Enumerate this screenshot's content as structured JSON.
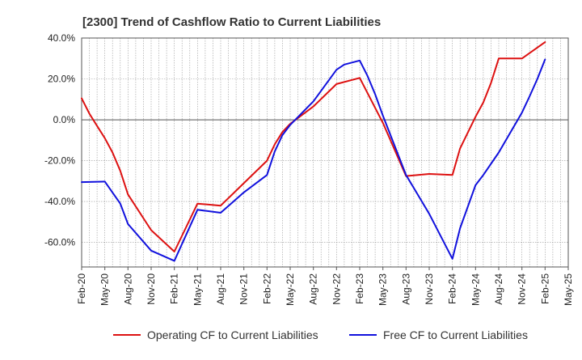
{
  "chart_data": {
    "type": "line",
    "title": "[2300]  Trend of Cashflow Ratio to Current Liabilities",
    "xlabel": "",
    "ylabel": "",
    "x_ticks": [
      "Feb-20",
      "May-20",
      "Aug-20",
      "Nov-20",
      "Feb-21",
      "May-21",
      "Aug-21",
      "Nov-21",
      "Feb-22",
      "May-22",
      "Aug-22",
      "Nov-22",
      "Feb-23",
      "May-23",
      "Aug-23",
      "Nov-23",
      "Feb-24",
      "May-24",
      "Aug-24",
      "Nov-24",
      "Feb-25",
      "May-25"
    ],
    "y_ticks": [
      {
        "value": 40,
        "label": "40.0%"
      },
      {
        "value": 20,
        "label": "20.0%"
      },
      {
        "value": 0,
        "label": "0.0%"
      },
      {
        "value": -20,
        "label": "-20.0%"
      },
      {
        "value": -40,
        "label": "-40.0%"
      },
      {
        "value": -60,
        "label": "-60.0%"
      }
    ],
    "ylim": [
      -72,
      40
    ],
    "xlim_months": [
      0,
      63
    ],
    "grid": true,
    "legend_position": "bottom",
    "series": [
      {
        "name": "Operating CF to Current Liabilities",
        "color": "#dd1111",
        "points": [
          [
            "Feb-20",
            10.5
          ],
          [
            "Mar-20",
            3
          ],
          [
            "Apr-20",
            -3
          ],
          [
            "May-20",
            -9
          ],
          [
            "Jun-20",
            -16
          ],
          [
            "Jul-20",
            -25
          ],
          [
            "Aug-20",
            -36.5
          ],
          [
            "Nov-20",
            -54
          ],
          [
            "Feb-21",
            -64.5
          ],
          [
            "May-21",
            -41
          ],
          [
            "Aug-21",
            -42
          ],
          [
            "Nov-21",
            -31
          ],
          [
            "Feb-22",
            -20
          ],
          [
            "Mar-22",
            -12
          ],
          [
            "Apr-22",
            -6
          ],
          [
            "May-22",
            -2
          ],
          [
            "Aug-22",
            6.5
          ],
          [
            "Nov-22",
            17.5
          ],
          [
            "Feb-23",
            20.5
          ],
          [
            "May-23",
            -1.5
          ],
          [
            "Aug-23",
            -27.5
          ],
          [
            "Nov-23",
            -26.5
          ],
          [
            "Feb-24",
            -27
          ],
          [
            "Mar-24",
            -14
          ],
          [
            "May-24",
            1.5
          ],
          [
            "Jun-24",
            8.5
          ],
          [
            "Jul-24",
            18
          ],
          [
            "Aug-24",
            30
          ],
          [
            "Nov-24",
            30
          ],
          [
            "Feb-25",
            38
          ]
        ]
      },
      {
        "name": "Free CF to Current Liabilities",
        "color": "#1111dd",
        "points": [
          [
            "Feb-20",
            -30.5
          ],
          [
            "May-20",
            -30.2
          ],
          [
            "Jul-20",
            -41
          ],
          [
            "Aug-20",
            -51
          ],
          [
            "Nov-20",
            -64
          ],
          [
            "Feb-21",
            -69
          ],
          [
            "May-21",
            -44
          ],
          [
            "Aug-21",
            -45.5
          ],
          [
            "Nov-21",
            -35.5
          ],
          [
            "Feb-22",
            -27
          ],
          [
            "Mar-22",
            -15.5
          ],
          [
            "Apr-22",
            -7.5
          ],
          [
            "May-22",
            -2.5
          ],
          [
            "Aug-22",
            9
          ],
          [
            "Nov-22",
            24.5
          ],
          [
            "Dec-22",
            27
          ],
          [
            "Feb-23",
            29
          ],
          [
            "Mar-23",
            21.5
          ],
          [
            "Apr-23",
            12.5
          ],
          [
            "May-23",
            2
          ],
          [
            "Aug-23",
            -27
          ],
          [
            "Nov-23",
            -46
          ],
          [
            "Feb-24",
            -68
          ],
          [
            "Mar-24",
            -53
          ],
          [
            "May-24",
            -32
          ],
          [
            "Jun-24",
            -27
          ],
          [
            "Aug-24",
            -16
          ],
          [
            "Nov-24",
            3.5
          ],
          [
            "Dec-24",
            11.5
          ],
          [
            "Jan-25",
            20
          ],
          [
            "Feb-25",
            29.5
          ]
        ]
      }
    ]
  }
}
